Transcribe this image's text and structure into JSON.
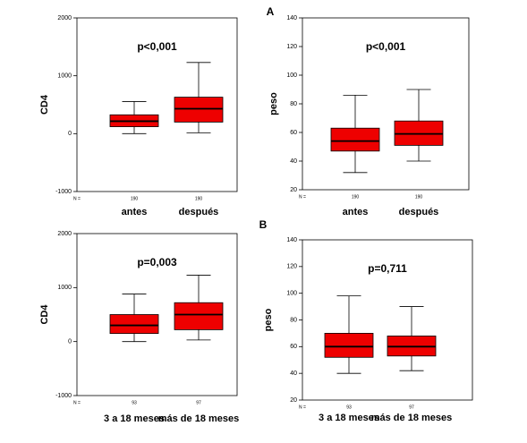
{
  "chart_data": [
    {
      "type": "box",
      "ylabel": "CD4",
      "annotation": "p<0,001",
      "n_label": "N =",
      "categories": [
        "antes",
        "después"
      ],
      "n": [
        190,
        190
      ],
      "color": "#ee0000",
      "ylim": [
        -1000,
        2000
      ],
      "yticks": [
        -1000,
        0,
        1000,
        2000
      ],
      "values": [
        {
          "min": 0,
          "q1": 120,
          "median": 215,
          "q3": 325,
          "max": 555
        },
        {
          "min": 15,
          "q1": 200,
          "median": 430,
          "q3": 630,
          "max": 1230
        }
      ]
    },
    {
      "type": "box",
      "panel_label": "A",
      "ylabel": "peso",
      "annotation": "p<0,001",
      "n_label": "N =",
      "categories": [
        "antes",
        "después"
      ],
      "n": [
        190,
        190
      ],
      "color": "#ee0000",
      "ylim": [
        20,
        140
      ],
      "yticks": [
        20,
        40,
        60,
        80,
        100,
        120,
        140
      ],
      "values": [
        {
          "min": 32,
          "q1": 47,
          "median": 54,
          "q3": 63,
          "max": 86
        },
        {
          "min": 40,
          "q1": 51,
          "median": 59,
          "q3": 68,
          "max": 90
        }
      ]
    },
    {
      "type": "box",
      "ylabel": "CD4",
      "annotation": "p=0,003",
      "n_label": "N =",
      "categories": [
        "3 a 18 meses",
        "más de 18 meses"
      ],
      "n": [
        93,
        97
      ],
      "color": "#ee0000",
      "ylim": [
        -1000,
        2000
      ],
      "yticks": [
        -1000,
        0,
        1000,
        2000
      ],
      "values": [
        {
          "min": 0,
          "q1": 150,
          "median": 300,
          "q3": 500,
          "max": 880
        },
        {
          "min": 30,
          "q1": 220,
          "median": 500,
          "q3": 720,
          "max": 1230
        }
      ]
    },
    {
      "type": "box",
      "panel_label": "B",
      "ylabel": "peso",
      "annotation": "p=0,711",
      "n_label": "N =",
      "categories": [
        "3 a 18 meses",
        "más de 18 meses"
      ],
      "n": [
        93,
        97
      ],
      "color": "#ee0000",
      "ylim": [
        20,
        140
      ],
      "yticks": [
        20,
        40,
        60,
        80,
        100,
        120,
        140
      ],
      "values": [
        {
          "min": 40,
          "q1": 52,
          "median": 60,
          "q3": 70,
          "max": 98
        },
        {
          "min": 42,
          "q1": 53,
          "median": 60,
          "q3": 68,
          "max": 90
        }
      ]
    }
  ]
}
